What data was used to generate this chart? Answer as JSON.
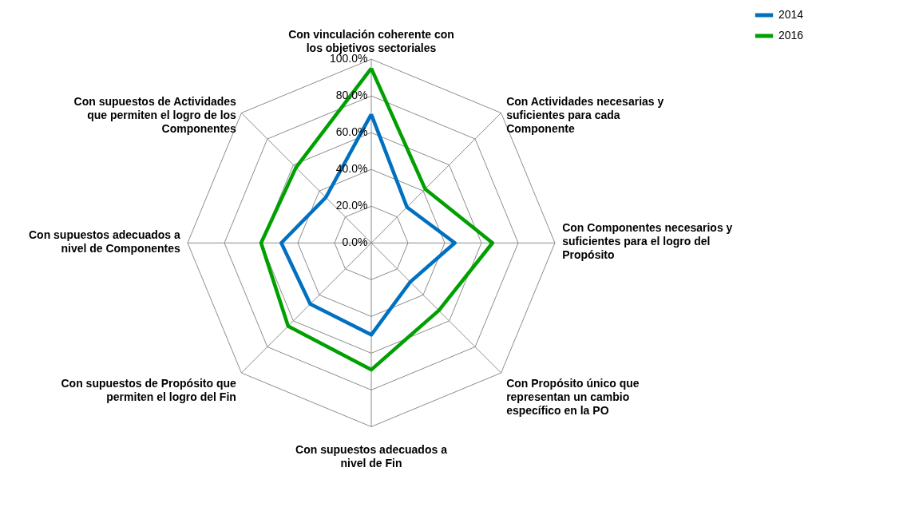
{
  "chart_data": {
    "type": "radar",
    "categories": [
      "Con vinculación coherente con los objetivos sectoriales",
      "Con Actividades necesarias y suficientes para cada Componente",
      "Con Componentes necesarios y suficientes para el logro del Propósito",
      "Con Propósito único que representan un cambio específico en la PO",
      "Con supuestos adecuados a nivel de Fin",
      "Con supuestos de Propósito que permiten el logro del Fin",
      "Con supuestos adecuados a nivel de Componentes",
      "Con supuestos de Actividades que permiten el logro de los Componentes"
    ],
    "series": [
      {
        "name": "2014",
        "color": "#0070c0",
        "values": [
          70,
          27.5,
          45.5,
          30,
          50,
          47,
          49,
          35
        ]
      },
      {
        "name": "2016",
        "color": "#00a000",
        "values": [
          95,
          41.5,
          66,
          52,
          69,
          64,
          60,
          58
        ]
      }
    ],
    "ylim": [
      0,
      100
    ],
    "yticks": [
      {
        "value": 0,
        "label": "0.0%"
      },
      {
        "value": 20,
        "label": "20.0%"
      },
      {
        "value": 40,
        "label": "40.0%"
      },
      {
        "value": 60,
        "label": "60.0%"
      },
      {
        "value": 80,
        "label": "80.0%"
      },
      {
        "value": 100,
        "label": "100.0%"
      }
    ],
    "grid": true,
    "legend": "right"
  }
}
